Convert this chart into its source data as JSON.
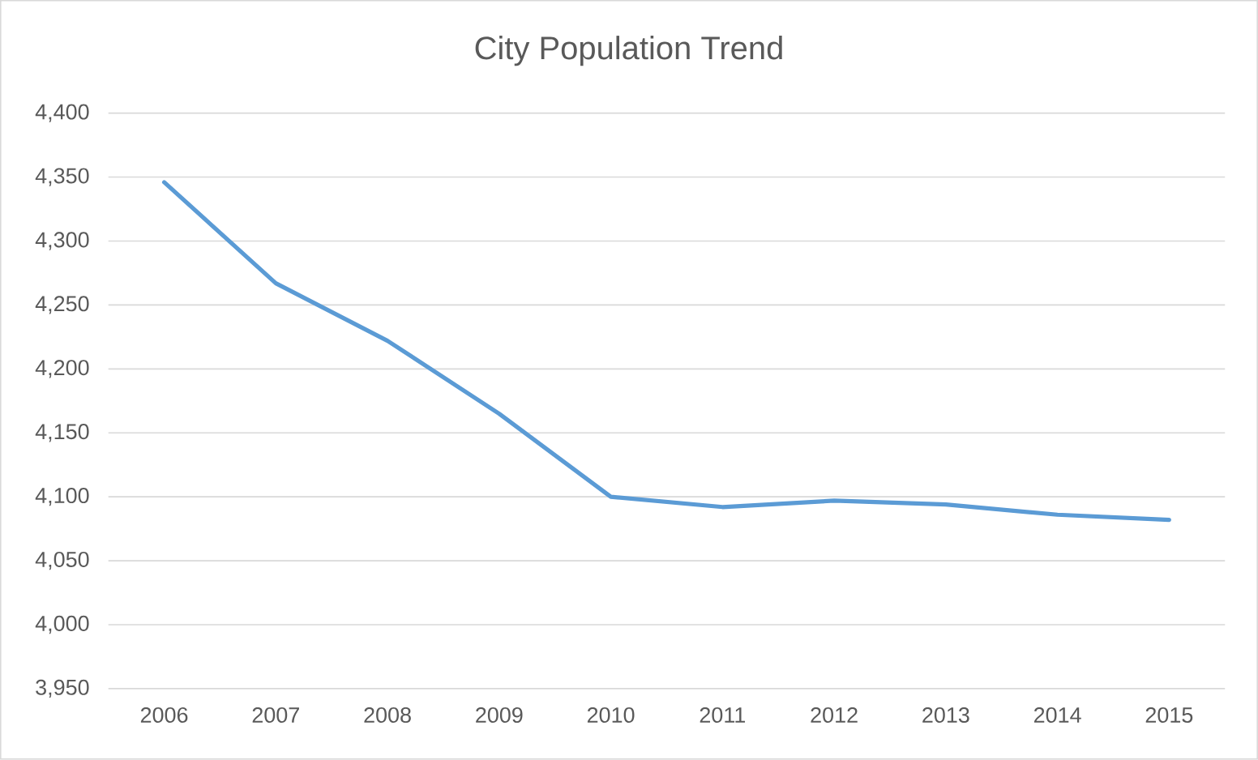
{
  "chart_data": {
    "type": "line",
    "title": "City Population Trend",
    "categories": [
      "2006",
      "2007",
      "2008",
      "2009",
      "2010",
      "2011",
      "2012",
      "2013",
      "2014",
      "2015"
    ],
    "values": [
      4346,
      4267,
      4222,
      4165,
      4100,
      4092,
      4097,
      4094,
      4086,
      4082
    ],
    "color": "#5b9bd5",
    "ylim": [
      3950,
      4400
    ],
    "yticks": [
      {
        "value": 3950,
        "label": "3,950"
      },
      {
        "value": 4000,
        "label": "4,000"
      },
      {
        "value": 4050,
        "label": "4,050"
      },
      {
        "value": 4100,
        "label": "4,100"
      },
      {
        "value": 4150,
        "label": "4,150"
      },
      {
        "value": 4200,
        "label": "4,200"
      },
      {
        "value": 4250,
        "label": "4,250"
      },
      {
        "value": 4300,
        "label": "4,300"
      },
      {
        "value": 4350,
        "label": "4,350"
      },
      {
        "value": 4400,
        "label": "4,400"
      }
    ],
    "grid": "y"
  }
}
